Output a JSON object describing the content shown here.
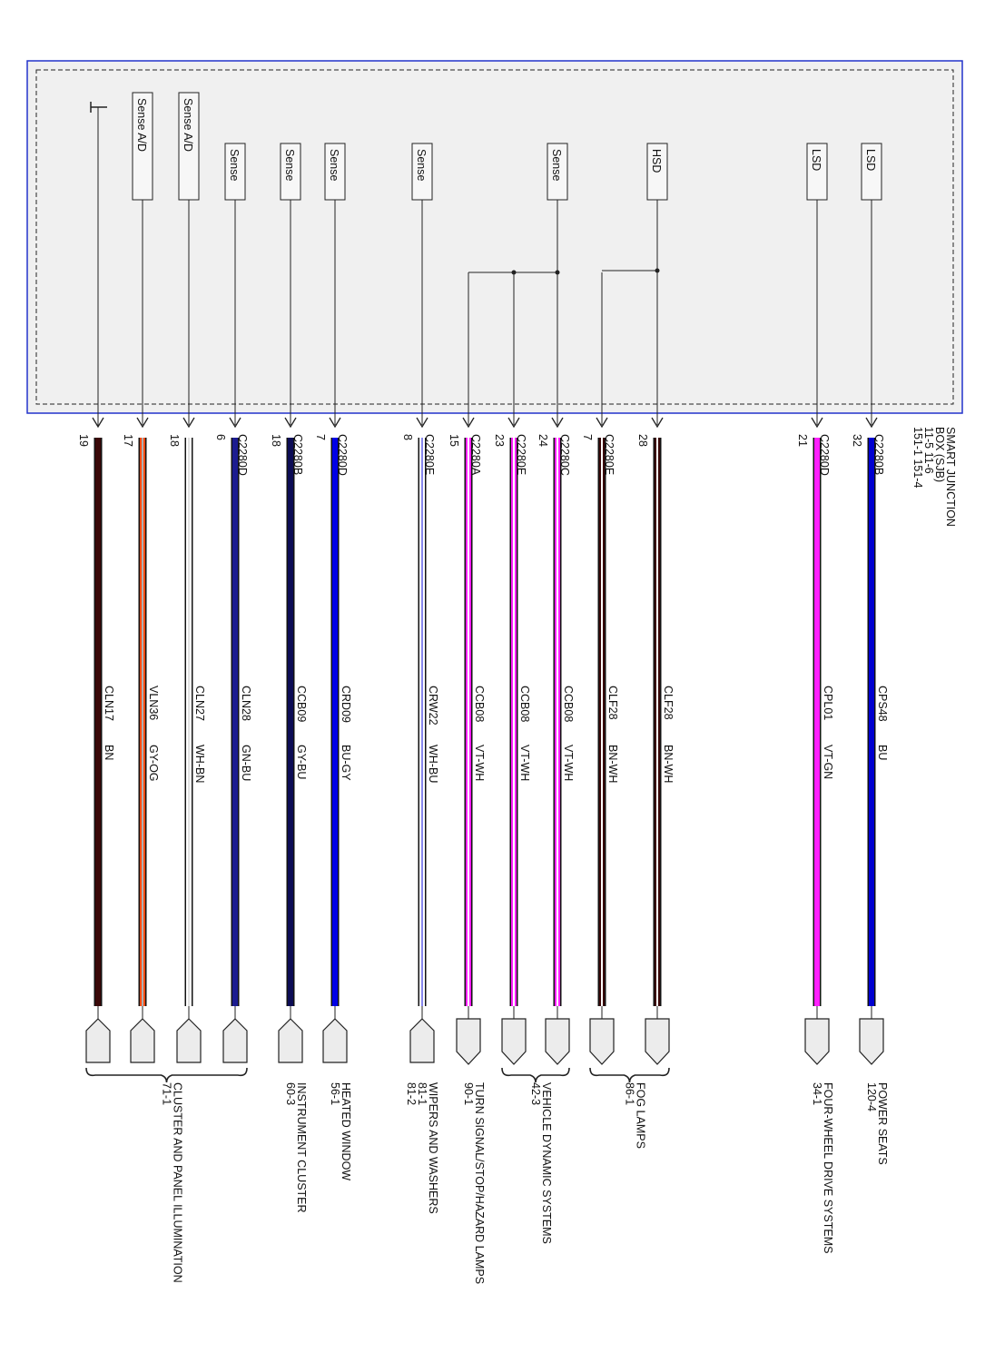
{
  "module": {
    "name_lines": [
      "SMART JUNCTION",
      "BOX (SJB)",
      "11-5      11-6",
      "151-1      151-4"
    ]
  },
  "colors": {
    "module_border": "#2233cc",
    "module_fill": "#f0f0f0",
    "connector_fill": "#ececec"
  },
  "columns": [
    {
      "component": "",
      "ground": true,
      "pin": "19",
      "connector": "",
      "circuit": "CLN17",
      "color_code": "BN",
      "wire": [
        "#3a0808",
        "#3a0808"
      ]
    },
    {
      "component": "Sense A/D",
      "pin": "17",
      "connector": "",
      "circuit": "VLN36",
      "color_code": "GY-OG",
      "wire": [
        "#ff4a10",
        "#b0b0b0"
      ]
    },
    {
      "component": "Sense A/D",
      "pin": "18",
      "connector": "",
      "circuit": "CLN27",
      "color_code": "WH-BN",
      "wire": [
        "#ffffff",
        "#ffffff"
      ]
    },
    {
      "component": "Sense",
      "pin": "6",
      "connector": "C2280D",
      "circuit": "CLN28",
      "color_code": "GN-BU",
      "wire": [
        "#1c1c90",
        "#1c1c90"
      ]
    },
    {
      "component": "Sense",
      "pin": "18",
      "connector": "C2280B",
      "circuit": "CCB09",
      "color_code": "GY-BU",
      "wire": [
        "#0c0c55",
        "#0c0c55"
      ]
    },
    {
      "component": "Sense",
      "pin": "7",
      "connector": "C2280D",
      "circuit": "CRD09",
      "color_code": "BU-GY",
      "wire": [
        "#0000e6",
        "#0000e6"
      ]
    },
    {
      "component": "Sense",
      "pin": "8",
      "connector": "C2280E",
      "circuit": "CRW22",
      "color_code": "WH-BU",
      "wire": [
        "#ffffff",
        "#8888ee"
      ]
    },
    {
      "component": "",
      "pin": "15",
      "connector": "C2280A",
      "circuit": "CCB08",
      "color_code": "VT-WH",
      "wire": [
        "#ff20ff",
        "#ffffff"
      ]
    },
    {
      "component": "",
      "pin": "23",
      "connector": "C2280E",
      "circuit": "CCB08",
      "color_code": "VT-WH",
      "wire": [
        "#ff20ff",
        "#ffffff"
      ]
    },
    {
      "component": "Sense",
      "pin": "24",
      "connector": "C2280C",
      "circuit": "CCB08",
      "color_code": "VT-WH",
      "wire": [
        "#ff20ff",
        "#ffffff"
      ]
    },
    {
      "component": "",
      "pin": "7",
      "connector": "C2280E",
      "circuit": "CLF28",
      "color_code": "BN-WH",
      "wire": [
        "#3a0808",
        "#ffffff"
      ]
    },
    {
      "component": "HSD",
      "pin": "28",
      "connector": "",
      "circuit": "CLF28",
      "color_code": "BN-WH",
      "wire": [
        "#3a0808",
        "#ffffff"
      ]
    },
    {
      "component": "LSD",
      "pin": "21",
      "connector": "C2280D",
      "circuit": "CPL01",
      "color_code": "VT-GN",
      "wire": [
        "#ff20ff",
        "#ff20ff"
      ]
    },
    {
      "component": "LSD",
      "pin": "32",
      "connector": "C2280B",
      "circuit": "CPS48",
      "color_code": "BU",
      "wire": [
        "#0000d0",
        "#0000d0"
      ]
    }
  ],
  "destinations": [
    {
      "name": "CLUSTER AND PANEL ILLUMINATION",
      "refs": [
        "71-1"
      ],
      "columns": [
        0,
        1,
        2,
        3
      ]
    },
    {
      "name": "INSTRUMENT CLUSTER",
      "refs": [
        "60-3"
      ],
      "columns": [
        4
      ]
    },
    {
      "name": "HEATED WINDOW",
      "refs": [
        "56-1"
      ],
      "columns": [
        5
      ]
    },
    {
      "name": "WIPERS AND WASHERS",
      "refs": [
        "81-1",
        "81-2"
      ],
      "columns": [
        6
      ]
    },
    {
      "name": "TURN SIGNAL/STOP/HAZARD LAMPS",
      "refs": [
        "90-1"
      ],
      "columns": [
        7
      ]
    },
    {
      "name": "VEHICLE DYNAMIC SYSTEMS",
      "refs": [
        "42-3"
      ],
      "columns": [
        8,
        9
      ]
    },
    {
      "name": "FOG LAMPS",
      "refs": [
        "86-1"
      ],
      "columns": [
        10,
        11
      ]
    },
    {
      "name": "FOUR-WHEEL DRIVE SYSTEMS",
      "refs": [
        "34-1"
      ],
      "columns": [
        12
      ]
    },
    {
      "name": "POWER SEATS",
      "refs": [
        "120-4"
      ],
      "columns": [
        13
      ]
    }
  ],
  "splices": [
    {
      "source": 9,
      "branches": [
        7,
        8
      ]
    },
    {
      "source": 11,
      "branches": [
        10
      ]
    }
  ]
}
